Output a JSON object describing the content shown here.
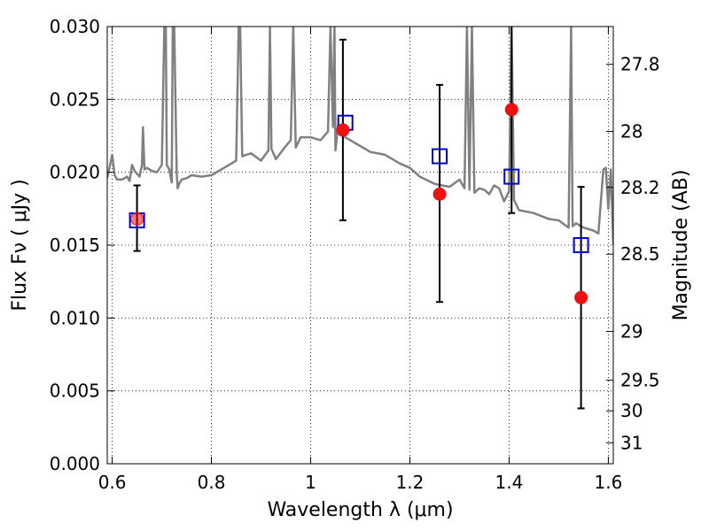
{
  "chart_data": {
    "type": "scatter",
    "xlabel": "Wavelength  λ (μm)",
    "ylabel": "Flux  Fν  ( μJy )",
    "ylabel_right": "Magnitude (AB)",
    "xlim": [
      0.59,
      1.61
    ],
    "ylim": [
      0.0,
      0.03
    ],
    "grid": true,
    "x_ticks": [
      0.6,
      0.8,
      1.0,
      1.2,
      1.4,
      1.6
    ],
    "x_tick_labels": [
      "0.6",
      "0.8",
      "1",
      "1.2",
      "1.4",
      "1.6"
    ],
    "y_ticks": [
      0.0,
      0.005,
      0.01,
      0.015,
      0.02,
      0.025,
      0.03
    ],
    "y_tick_labels": [
      "0.000",
      "0.005",
      "0.010",
      "0.015",
      "0.020",
      "0.025",
      "0.030"
    ],
    "right_ticks": [
      {
        "label": "27.8",
        "flux": 0.02741
      },
      {
        "label": "28",
        "flux": 0.0228
      },
      {
        "label": "28.2",
        "flux": 0.01896
      },
      {
        "label": "28.5",
        "flux": 0.01438
      },
      {
        "label": "29",
        "flux": 0.00908
      },
      {
        "label": "29.5",
        "flux": 0.00573
      },
      {
        "label": "30",
        "flux": 0.00363
      },
      {
        "label": "31",
        "flux": 0.00144
      }
    ],
    "series": [
      {
        "kind": "line",
        "color": "#808080",
        "x": [
          0.59,
          0.6,
          0.605,
          0.61,
          0.62,
          0.63,
          0.635,
          0.64,
          0.645,
          0.65,
          0.655,
          0.66,
          0.662,
          0.665,
          0.67,
          0.68,
          0.69,
          0.7,
          0.705,
          0.708,
          0.71,
          0.715,
          0.72,
          0.722,
          0.725,
          0.73,
          0.732,
          0.735,
          0.74,
          0.75,
          0.76,
          0.78,
          0.8,
          0.82,
          0.84,
          0.85,
          0.855,
          0.858,
          0.862,
          0.87,
          0.88,
          0.9,
          0.915,
          0.918,
          0.921,
          0.93,
          0.95,
          0.96,
          0.965,
          0.97,
          0.98,
          1.0,
          1.02,
          1.035,
          1.04,
          1.045,
          1.048,
          1.05,
          1.055,
          1.06,
          1.08,
          1.1,
          1.12,
          1.15,
          1.18,
          1.2,
          1.22,
          1.25,
          1.28,
          1.3,
          1.31,
          1.315,
          1.32,
          1.325,
          1.33,
          1.34,
          1.35,
          1.36,
          1.37,
          1.38,
          1.39,
          1.4,
          1.405,
          1.41,
          1.42,
          1.45,
          1.48,
          1.5,
          1.52,
          1.525,
          1.528,
          1.535,
          1.55,
          1.57,
          1.58,
          1.59,
          1.595,
          1.6,
          1.605,
          1.61
        ],
        "y": [
          0.0196,
          0.0212,
          0.0198,
          0.0195,
          0.0195,
          0.0197,
          0.0194,
          0.0205,
          0.0201,
          0.0199,
          0.0197,
          0.0205,
          0.0231,
          0.0202,
          0.0203,
          0.0201,
          0.02,
          0.0205,
          0.03,
          0.03,
          0.0205,
          0.0202,
          0.0193,
          0.03,
          0.03,
          0.0199,
          0.0189,
          0.0192,
          0.0195,
          0.0196,
          0.0198,
          0.0197,
          0.0198,
          0.0202,
          0.0206,
          0.0208,
          0.03,
          0.03,
          0.0211,
          0.0212,
          0.0213,
          0.0208,
          0.0215,
          0.03,
          0.0216,
          0.0209,
          0.0218,
          0.0222,
          0.03,
          0.0217,
          0.0224,
          0.0224,
          0.0222,
          0.0228,
          0.03,
          0.0231,
          0.03,
          0.0215,
          0.0232,
          0.0226,
          0.0222,
          0.0218,
          0.0214,
          0.0212,
          0.0206,
          0.0203,
          0.0197,
          0.0192,
          0.019,
          0.0195,
          0.0189,
          0.03,
          0.0188,
          0.03,
          0.0186,
          0.0189,
          0.0188,
          0.0185,
          0.0191,
          0.0189,
          0.018,
          0.0187,
          0.03,
          0.0181,
          0.0174,
          0.0172,
          0.0168,
          0.0167,
          0.0162,
          0.03,
          0.0163,
          0.0165,
          0.0162,
          0.016,
          0.0158,
          0.0202,
          0.0203,
          0.0175,
          0.0202,
          0.015
        ]
      },
      {
        "kind": "errorbar",
        "color": "#000000",
        "x": [
          0.65,
          1.065,
          1.26,
          1.405,
          1.545
        ],
        "y": [
          0.0168,
          0.0229,
          0.0185,
          0.0243,
          0.0114
        ],
        "yerr_low": [
          0.0146,
          0.0167,
          0.0111,
          0.0172,
          0.0038
        ],
        "yerr_high": [
          0.0191,
          0.0291,
          0.026,
          0.0302,
          0.019
        ]
      },
      {
        "kind": "markers",
        "marker": "open-square",
        "color": "#0000cc",
        "x": [
          0.65,
          1.07,
          1.26,
          1.405,
          1.545
        ],
        "y": [
          0.0167,
          0.0234,
          0.0211,
          0.0197,
          0.015
        ]
      },
      {
        "kind": "markers",
        "marker": "filled-circle",
        "color": "#ee1111",
        "x": [
          0.65,
          1.065,
          1.26,
          1.405,
          1.545
        ],
        "y": [
          0.0168,
          0.0229,
          0.0185,
          0.0243,
          0.0114
        ]
      }
    ]
  }
}
